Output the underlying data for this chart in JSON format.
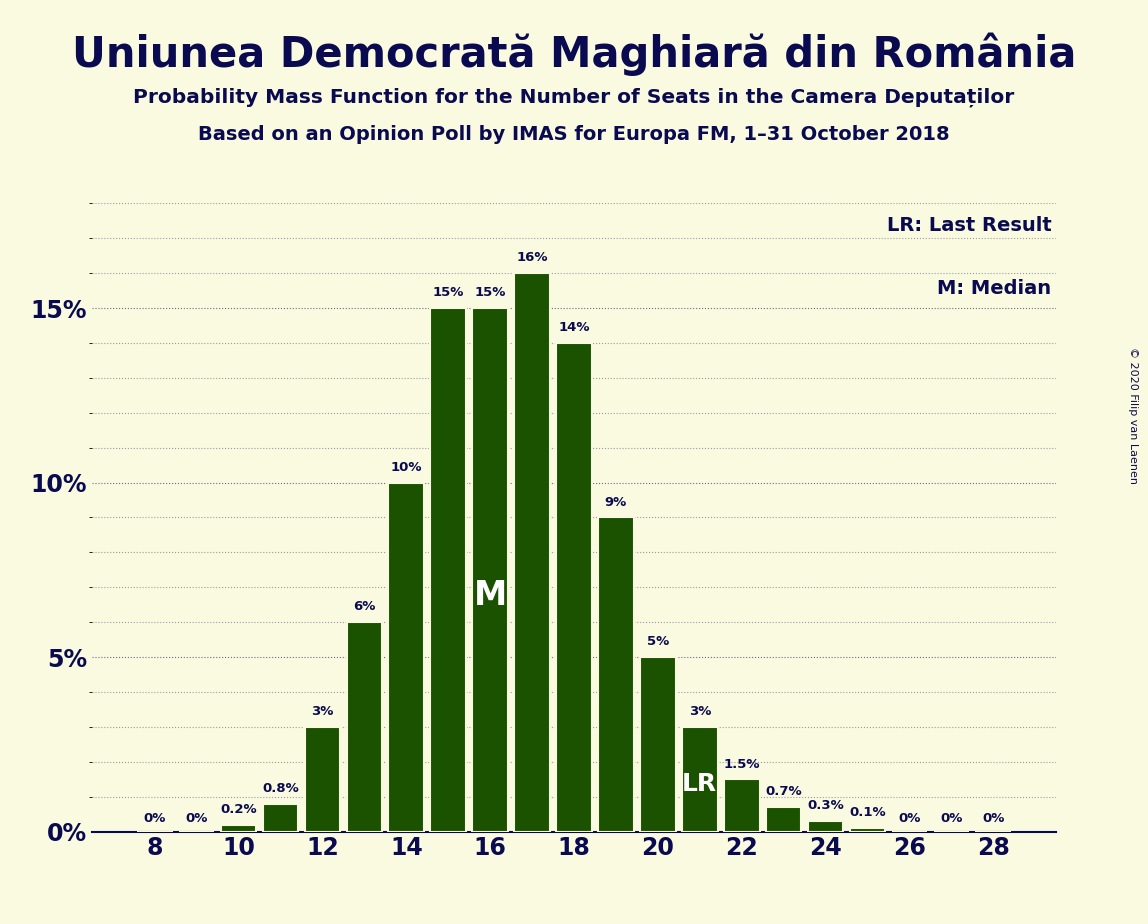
{
  "title": "Uniunea Democrată Maghiară din România",
  "subtitle1": "Probability Mass Function for the Number of Seats in the Camera Deputaților",
  "subtitle2": "Based on an Opinion Poll by IMAS for Europa FM, 1–31 October 2018",
  "copyright": "© 2020 Filip van Laenen",
  "background_color": "#FAFAE0",
  "bar_color": "#1A5200",
  "bar_edge_color": "#FAFAE0",
  "title_color": "#0A0A50",
  "seats": [
    8,
    9,
    10,
    11,
    12,
    13,
    14,
    15,
    16,
    17,
    18,
    19,
    20,
    21,
    22,
    23,
    24,
    25,
    26,
    27,
    28
  ],
  "probabilities": [
    0.0,
    0.0,
    0.2,
    0.8,
    3.0,
    6.0,
    10.0,
    15.0,
    15.0,
    16.0,
    14.0,
    9.0,
    5.0,
    3.0,
    1.5,
    0.7,
    0.3,
    0.1,
    0.0,
    0.0,
    0.0
  ],
  "median_seat": 16,
  "lr_seat": 21,
  "yticks": [
    0,
    5,
    10,
    15
  ],
  "xticks": [
    8,
    10,
    12,
    14,
    16,
    18,
    20,
    22,
    24,
    26,
    28
  ],
  "ylim": [
    0,
    18
  ],
  "legend_lr": "LR: Last Result",
  "legend_m": "M: Median",
  "label_positions": {
    "8": "0%",
    "9": "0%",
    "10": "0.2%",
    "11": "0.8%",
    "12": "3%",
    "13": "6%",
    "14": "10%",
    "15": "15%",
    "16": "15%",
    "17": "16%",
    "18": "14%",
    "19": "9%",
    "20": "5%",
    "21": "3%",
    "22": "1.5%",
    "23": "0.7%",
    "24": "0.3%",
    "25": "0.1%",
    "26": "0%",
    "27": "0%",
    "28": "0%"
  }
}
